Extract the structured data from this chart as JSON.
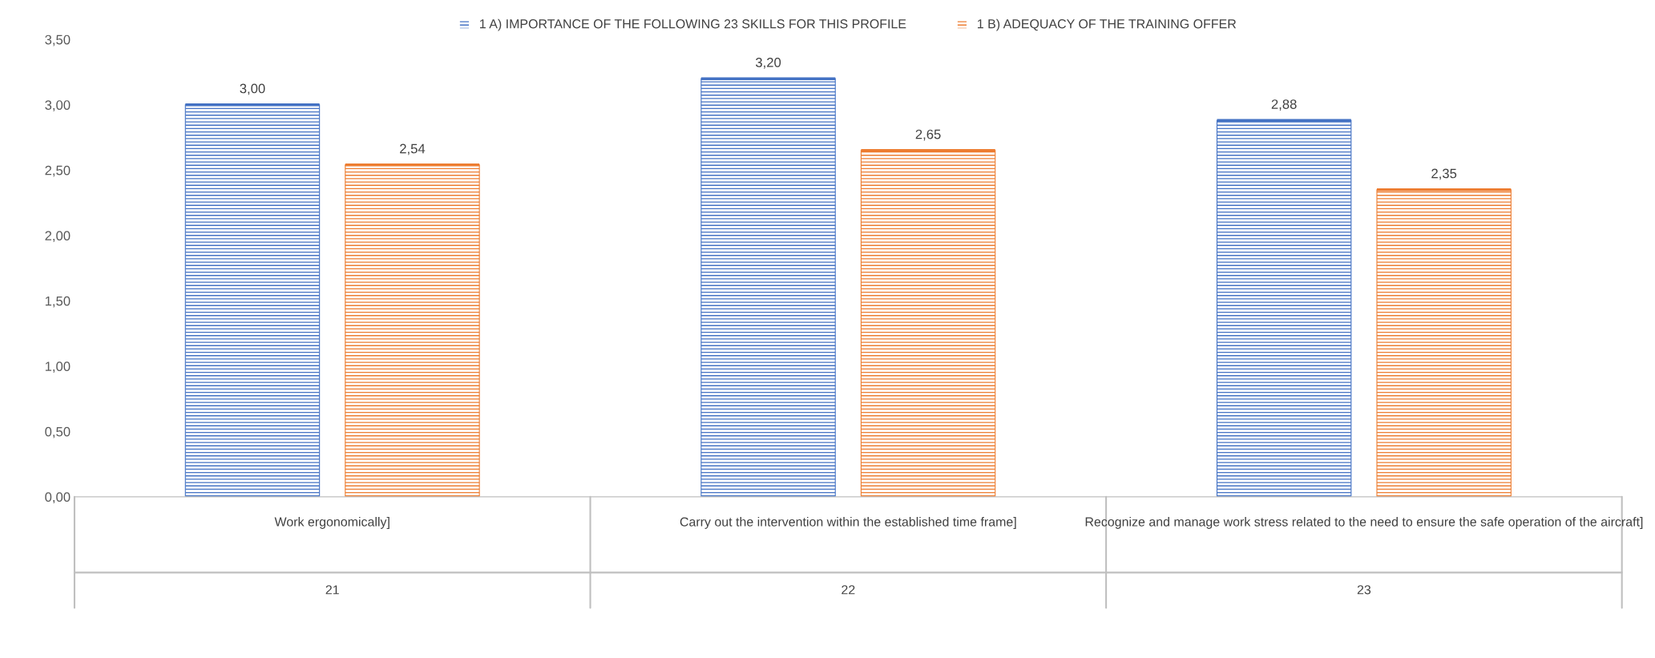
{
  "chart_data": {
    "type": "bar",
    "categories": [
      "Work ergonomically]\n21",
      "Carry out the intervention within the established time frame]\n22",
      "Recognize and manage work stress related to the need to ensure the safe operation of the aircraft]\n23"
    ],
    "series": [
      {
        "name": "1 A) IMPORTANCE OF THE FOLLOWING 23 SKILLS FOR THIS PROFILE",
        "color": "#4472c4",
        "values": [
          3.0,
          3.2,
          2.88
        ],
        "value_labels": [
          "3,00",
          "3,20",
          "2,88"
        ]
      },
      {
        "name": "1 B) ADEQUACY OF THE TRAINING OFFER",
        "color": "#ed7d31",
        "values": [
          2.54,
          2.65,
          2.35
        ],
        "value_labels": [
          "2,54",
          "2,65",
          "2,35"
        ]
      }
    ],
    "ylim": [
      0,
      3.5
    ],
    "yticks": [
      {
        "value": 0,
        "label": "0,00"
      },
      {
        "value": 0.5,
        "label": "0,50"
      },
      {
        "value": 1,
        "label": "1,00"
      },
      {
        "value": 1.5,
        "label": "1,50"
      },
      {
        "value": 2,
        "label": "2,00"
      },
      {
        "value": 2.5,
        "label": "2,50"
      },
      {
        "value": 3,
        "label": "3,00"
      },
      {
        "value": 3.5,
        "label": "3,50"
      }
    ],
    "grid": false,
    "legend": "top"
  }
}
